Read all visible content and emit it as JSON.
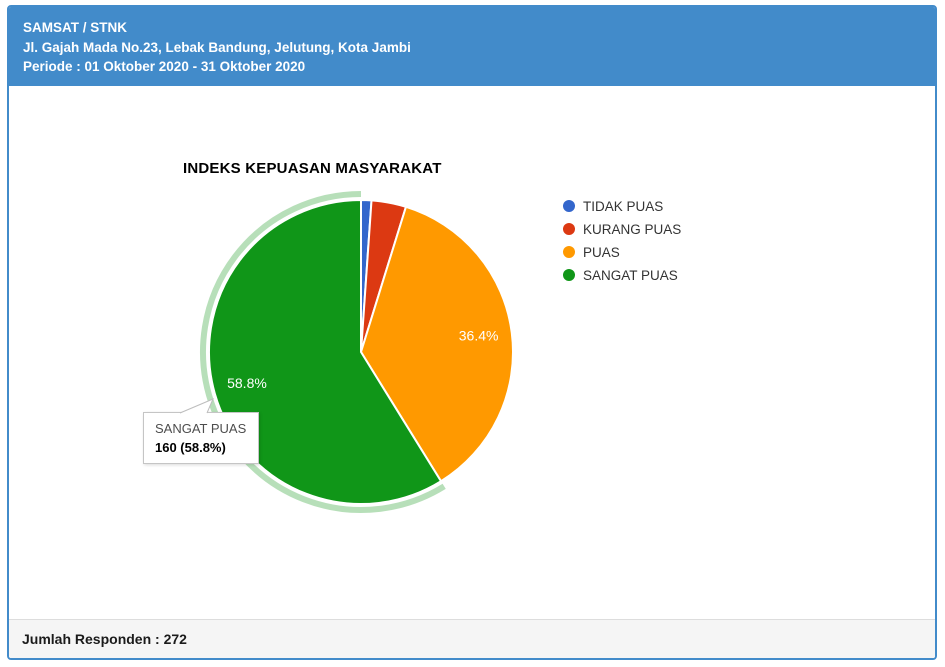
{
  "header": {
    "office": "SAMSAT / STNK",
    "address": "Jl. Gajah Mada No.23, Lebak Bandung, Jelutung, Kota Jambi",
    "periode": "Periode : 01 Oktober 2020 - 31 Oktober 2020"
  },
  "chart_data": {
    "type": "pie",
    "title": "INDEKS KEPUASAN MASYARAKAT",
    "categories": [
      "TIDAK PUAS",
      "KURANG PUAS",
      "PUAS",
      "SANGAT PUAS"
    ],
    "values": [
      3,
      10,
      99,
      160
    ],
    "total": 272,
    "percent_labels": [
      "1.1%",
      "3.7%",
      "36.4%",
      "58.8%"
    ],
    "colors": [
      "#3366cc",
      "#dc3912",
      "#ff9900",
      "#109618"
    ],
    "selected_index": 3,
    "selection_ring_color": "rgba(16,150,24,0.30)",
    "legend_position": "right",
    "start_angle_deg": 0,
    "min_pct_for_label": 10
  },
  "tooltip": {
    "category_label": "SANGAT PUAS",
    "value_label": "160 (58.8%)"
  },
  "footer": {
    "respondents_label": "Jumlah Responden : 272"
  },
  "theme": {
    "header_bg": "#428bca",
    "card_border": "#428bca",
    "header_text": "#ffffff",
    "footer_bg": "#f5f5f5",
    "footer_border": "#dddddd",
    "legend_text": "#333333",
    "slice_label_color": "#ffffff",
    "slice_divider": "#ffffff"
  }
}
